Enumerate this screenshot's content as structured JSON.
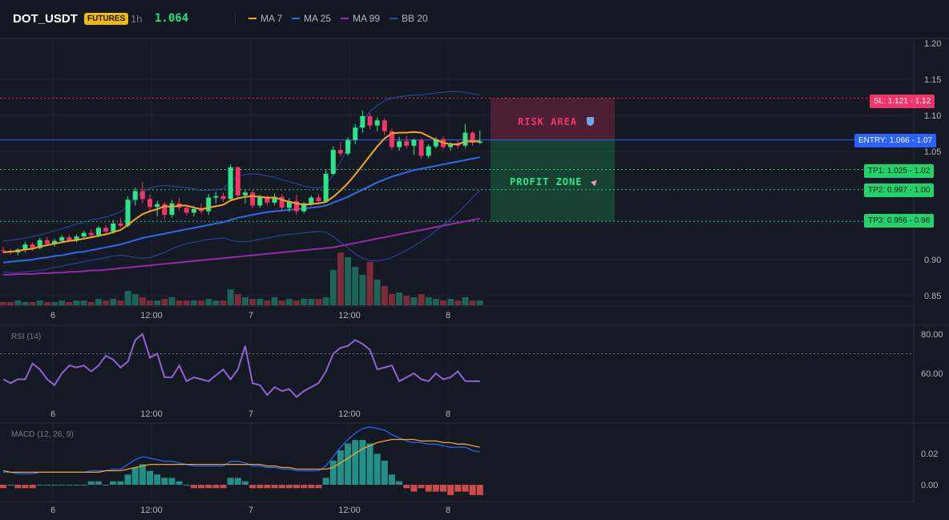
{
  "header": {
    "symbol": "DOT_USDT",
    "badge": "FUTURES",
    "timeframe": "1h",
    "price": "1.064",
    "indicators": [
      {
        "label": "MA 7",
        "color": "#f5a623"
      },
      {
        "label": "MA 25",
        "color": "#2f6be8"
      },
      {
        "label": "MA 99",
        "color": "#9c27b0"
      },
      {
        "label": "BB 20",
        "color": "#2b4aa8"
      }
    ]
  },
  "zones": {
    "risk_label": "RISK AREA",
    "risk_icon": "shield-icon",
    "profit_label": "PROFIT ZONE",
    "profit_icon": "rocket-icon"
  },
  "levels": {
    "sl": {
      "label": "SL: 1.121 - 1.12",
      "value": 1.121,
      "color": "#f23568"
    },
    "entry": {
      "label": "ENTRY: 1.066 - 1.07",
      "value": 1.066,
      "color": "#2962ff"
    },
    "tp1": {
      "label": "TP1: 1.025 - 1.02",
      "value": 1.025,
      "color": "#22d36b"
    },
    "tp2": {
      "label": "TP2: 0.997 - 1.00",
      "value": 0.997,
      "color": "#22d36b"
    },
    "tp3": {
      "label": "TP3: 0.956 - 0.96",
      "value": 0.956,
      "color": "#22d36b"
    }
  },
  "axes": {
    "price_ticks": [
      "1.20",
      "1.15",
      "1.10",
      "1.05",
      "0.90",
      "0.85"
    ],
    "time_ticks": [
      "6",
      "12:00",
      "7",
      "12:00",
      "8"
    ],
    "rsi_label": "RSI (14)",
    "rsi_ticks": [
      "80.00",
      "60.00"
    ],
    "macd_label": "MACD (12, 26, 9)",
    "macd_ticks": [
      "0.02",
      "0.00"
    ]
  },
  "chart_data": {
    "type": "candlestick",
    "x_ticks": [
      "6",
      "12:00",
      "7",
      "12:00",
      "8"
    ],
    "y_range": [
      0.85,
      1.2
    ],
    "candles": [
      [
        0.913,
        0.918,
        0.909,
        0.912
      ],
      [
        0.912,
        0.915,
        0.907,
        0.91
      ],
      [
        0.91,
        0.916,
        0.906,
        0.914
      ],
      [
        0.914,
        0.925,
        0.91,
        0.921
      ],
      [
        0.921,
        0.924,
        0.912,
        0.916
      ],
      [
        0.916,
        0.93,
        0.914,
        0.927
      ],
      [
        0.927,
        0.931,
        0.919,
        0.922
      ],
      [
        0.922,
        0.929,
        0.918,
        0.926
      ],
      [
        0.926,
        0.934,
        0.923,
        0.931
      ],
      [
        0.931,
        0.934,
        0.924,
        0.927
      ],
      [
        0.927,
        0.935,
        0.924,
        0.932
      ],
      [
        0.932,
        0.94,
        0.929,
        0.937
      ],
      [
        0.937,
        0.942,
        0.93,
        0.934
      ],
      [
        0.934,
        0.947,
        0.931,
        0.944
      ],
      [
        0.944,
        0.948,
        0.935,
        0.939
      ],
      [
        0.939,
        0.955,
        0.936,
        0.95
      ],
      [
        0.95,
        0.958,
        0.944,
        0.947
      ],
      [
        0.947,
        0.988,
        0.945,
        0.983
      ],
      [
        0.983,
        1.0,
        0.975,
        0.995
      ],
      [
        0.995,
        1.008,
        0.978,
        0.984
      ],
      [
        0.984,
        0.99,
        0.966,
        0.973
      ],
      [
        0.973,
        0.982,
        0.96,
        0.977
      ],
      [
        0.977,
        0.98,
        0.956,
        0.962
      ],
      [
        0.962,
        0.983,
        0.958,
        0.978
      ],
      [
        0.978,
        0.986,
        0.968,
        0.972
      ],
      [
        0.972,
        0.976,
        0.961,
        0.965
      ],
      [
        0.965,
        0.975,
        0.96,
        0.97
      ],
      [
        0.97,
        0.978,
        0.963,
        0.967
      ],
      [
        0.967,
        0.991,
        0.962,
        0.986
      ],
      [
        0.986,
        0.994,
        0.978,
        0.988
      ],
      [
        0.988,
        0.993,
        0.98,
        0.984
      ],
      [
        0.984,
        1.032,
        0.981,
        1.028
      ],
      [
        1.028,
        1.03,
        0.985,
        0.989
      ],
      [
        0.989,
        0.996,
        0.978,
        0.993
      ],
      [
        0.993,
        0.996,
        0.971,
        0.975
      ],
      [
        0.975,
        0.99,
        0.972,
        0.986
      ],
      [
        0.986,
        0.989,
        0.975,
        0.979
      ],
      [
        0.979,
        0.992,
        0.975,
        0.987
      ],
      [
        0.987,
        0.991,
        0.968,
        0.972
      ],
      [
        0.972,
        0.985,
        0.966,
        0.981
      ],
      [
        0.981,
        0.99,
        0.962,
        0.967
      ],
      [
        0.967,
        0.98,
        0.964,
        0.978
      ],
      [
        0.978,
        0.989,
        0.975,
        0.986
      ],
      [
        0.986,
        0.991,
        0.978,
        0.981
      ],
      [
        0.981,
        1.025,
        0.979,
        1.019
      ],
      [
        1.019,
        1.057,
        1.017,
        1.052
      ],
      [
        1.052,
        1.063,
        1.043,
        1.047
      ],
      [
        1.047,
        1.07,
        1.044,
        1.066
      ],
      [
        1.066,
        1.088,
        1.06,
        1.083
      ],
      [
        1.083,
        1.107,
        1.076,
        1.099
      ],
      [
        1.099,
        1.103,
        1.081,
        1.086
      ],
      [
        1.086,
        1.097,
        1.078,
        1.093
      ],
      [
        1.093,
        1.096,
        1.072,
        1.078
      ],
      [
        1.078,
        1.082,
        1.052,
        1.056
      ],
      [
        1.056,
        1.07,
        1.051,
        1.064
      ],
      [
        1.064,
        1.072,
        1.054,
        1.058
      ],
      [
        1.058,
        1.068,
        1.045,
        1.066
      ],
      [
        1.066,
        1.068,
        1.04,
        1.044
      ],
      [
        1.044,
        1.06,
        1.041,
        1.057
      ],
      [
        1.057,
        1.07,
        1.054,
        1.067
      ],
      [
        1.067,
        1.071,
        1.053,
        1.056
      ],
      [
        1.056,
        1.063,
        1.051,
        1.06
      ],
      [
        1.06,
        1.066,
        1.054,
        1.058
      ],
      [
        1.058,
        1.088,
        1.055,
        1.076
      ],
      [
        1.076,
        1.078,
        1.058,
        1.062
      ],
      [
        1.062,
        1.079,
        1.06,
        1.064
      ]
    ],
    "volume": [
      2,
      2,
      3,
      2,
      2,
      3,
      2,
      2,
      3,
      2,
      3,
      3,
      2,
      4,
      3,
      4,
      3,
      9,
      7,
      5,
      3,
      3,
      4,
      5,
      3,
      3,
      3,
      3,
      4,
      3,
      3,
      10,
      7,
      5,
      4,
      4,
      3,
      5,
      3,
      4,
      3,
      4,
      4,
      4,
      5,
      22,
      33,
      30,
      24,
      19,
      27,
      16,
      12,
      7,
      8,
      6,
      5,
      7,
      5,
      4,
      3,
      4,
      3,
      5,
      3,
      3
    ],
    "ma7": [
      0.91,
      0.911,
      0.912,
      0.914,
      0.915,
      0.918,
      0.92,
      0.922,
      0.924,
      0.926,
      0.927,
      0.929,
      0.931,
      0.933,
      0.935,
      0.938,
      0.941,
      0.948,
      0.956,
      0.963,
      0.967,
      0.97,
      0.974,
      0.973,
      0.975,
      0.975,
      0.972,
      0.97,
      0.972,
      0.974,
      0.976,
      0.982,
      0.985,
      0.987,
      0.988,
      0.987,
      0.986,
      0.986,
      0.983,
      0.98,
      0.978,
      0.976,
      0.977,
      0.978,
      0.98,
      0.987,
      0.996,
      1.006,
      1.018,
      1.031,
      1.044,
      1.057,
      1.068,
      1.075,
      1.076,
      1.076,
      1.077,
      1.076,
      1.071,
      1.066,
      1.062,
      1.06,
      1.06,
      1.064,
      1.064,
      1.064
    ],
    "ma25": [
      0.896,
      0.897,
      0.898,
      0.899,
      0.9,
      0.902,
      0.903,
      0.905,
      0.906,
      0.908,
      0.91,
      0.911,
      0.913,
      0.915,
      0.917,
      0.919,
      0.921,
      0.924,
      0.927,
      0.93,
      0.932,
      0.934,
      0.936,
      0.938,
      0.94,
      0.942,
      0.944,
      0.946,
      0.948,
      0.95,
      0.952,
      0.955,
      0.958,
      0.96,
      0.962,
      0.964,
      0.966,
      0.967,
      0.968,
      0.969,
      0.97,
      0.971,
      0.972,
      0.973,
      0.975,
      0.979,
      0.983,
      0.987,
      0.992,
      0.997,
      1.002,
      1.007,
      1.011,
      1.015,
      1.018,
      1.021,
      1.024,
      1.026,
      1.028,
      1.03,
      1.032,
      1.034,
      1.036,
      1.038,
      1.04,
      1.042
    ],
    "ma99": [
      0.879,
      0.879,
      0.88,
      0.88,
      0.88,
      0.881,
      0.881,
      0.882,
      0.882,
      0.883,
      0.883,
      0.884,
      0.885,
      0.885,
      0.886,
      0.887,
      0.888,
      0.889,
      0.89,
      0.891,
      0.892,
      0.893,
      0.894,
      0.895,
      0.896,
      0.897,
      0.898,
      0.899,
      0.9,
      0.901,
      0.902,
      0.903,
      0.904,
      0.905,
      0.906,
      0.907,
      0.908,
      0.909,
      0.91,
      0.911,
      0.912,
      0.913,
      0.914,
      0.915,
      0.916,
      0.917,
      0.919,
      0.921,
      0.923,
      0.925,
      0.927,
      0.929,
      0.931,
      0.933,
      0.935,
      0.937,
      0.939,
      0.941,
      0.943,
      0.945,
      0.947,
      0.949,
      0.951,
      0.953,
      0.955,
      0.957
    ],
    "bb_upper": [
      0.926,
      0.927,
      0.928,
      0.93,
      0.932,
      0.934,
      0.937,
      0.94,
      0.943,
      0.946,
      0.949,
      0.952,
      0.955,
      0.957,
      0.959,
      0.962,
      0.966,
      0.975,
      0.985,
      0.994,
      0.999,
      1.002,
      1.003,
      1.002,
      1.001,
      1.0,
      0.998,
      0.996,
      0.996,
      0.997,
      0.998,
      1.009,
      1.015,
      1.018,
      1.019,
      1.018,
      1.016,
      1.014,
      1.011,
      1.008,
      1.005,
      1.002,
      1.0,
      0.999,
      1.003,
      1.018,
      1.036,
      1.054,
      1.074,
      1.092,
      1.105,
      1.114,
      1.12,
      1.124,
      1.126,
      1.127,
      1.128,
      1.128,
      1.13,
      1.131,
      1.132,
      1.133,
      1.133,
      1.132,
      1.13,
      1.128
    ],
    "bb_lower": [
      0.883,
      0.882,
      0.882,
      0.883,
      0.884,
      0.885,
      0.887,
      0.889,
      0.891,
      0.893,
      0.895,
      0.897,
      0.899,
      0.901,
      0.903,
      0.905,
      0.906,
      0.905,
      0.903,
      0.902,
      0.903,
      0.906,
      0.91,
      0.915,
      0.919,
      0.922,
      0.924,
      0.926,
      0.928,
      0.929,
      0.93,
      0.927,
      0.925,
      0.925,
      0.926,
      0.928,
      0.93,
      0.932,
      0.934,
      0.935,
      0.936,
      0.937,
      0.938,
      0.939,
      0.938,
      0.932,
      0.924,
      0.916,
      0.908,
      0.902,
      0.898,
      0.898,
      0.9,
      0.903,
      0.908,
      0.913,
      0.919,
      0.925,
      0.932,
      0.94,
      0.948,
      0.956,
      0.965,
      0.975,
      0.986,
      0.996
    ],
    "rsi": [
      57,
      55,
      57,
      57,
      65,
      62,
      57,
      54,
      60,
      64,
      63,
      64,
      61,
      64,
      69,
      67,
      63,
      66,
      77,
      80,
      68,
      70,
      58,
      58,
      64,
      56,
      58,
      57,
      56,
      59,
      62,
      57,
      62,
      74,
      55,
      54,
      49,
      53,
      51,
      52,
      48,
      51,
      53,
      55,
      61,
      70,
      73,
      74,
      77,
      75,
      72,
      62,
      63,
      64,
      56,
      58,
      60,
      57,
      56,
      60,
      57,
      58,
      61,
      56,
      56,
      56
    ],
    "rsi_range": [
      45,
      85
    ],
    "rsi_level": 70,
    "macd": [
      0.008,
      0.008,
      0.007,
      0.007,
      0.007,
      0.008,
      0.008,
      0.008,
      0.008,
      0.008,
      0.008,
      0.008,
      0.009,
      0.009,
      0.009,
      0.01,
      0.01,
      0.013,
      0.016,
      0.018,
      0.017,
      0.016,
      0.015,
      0.015,
      0.014,
      0.013,
      0.012,
      0.012,
      0.012,
      0.012,
      0.012,
      0.015,
      0.015,
      0.014,
      0.012,
      0.012,
      0.011,
      0.011,
      0.01,
      0.01,
      0.009,
      0.009,
      0.009,
      0.009,
      0.012,
      0.018,
      0.024,
      0.029,
      0.033,
      0.036,
      0.037,
      0.036,
      0.035,
      0.032,
      0.03,
      0.028,
      0.027,
      0.027,
      0.026,
      0.026,
      0.025,
      0.024,
      0.024,
      0.024,
      0.022,
      0.021
    ],
    "macd_signal": [
      0.009,
      0.008,
      0.008,
      0.008,
      0.008,
      0.008,
      0.008,
      0.008,
      0.008,
      0.008,
      0.008,
      0.008,
      0.008,
      0.008,
      0.009,
      0.009,
      0.009,
      0.01,
      0.011,
      0.012,
      0.013,
      0.013,
      0.013,
      0.013,
      0.013,
      0.013,
      0.013,
      0.013,
      0.013,
      0.013,
      0.013,
      0.013,
      0.013,
      0.013,
      0.013,
      0.013,
      0.012,
      0.012,
      0.011,
      0.011,
      0.01,
      0.01,
      0.01,
      0.01,
      0.01,
      0.011,
      0.014,
      0.017,
      0.02,
      0.023,
      0.025,
      0.027,
      0.028,
      0.029,
      0.029,
      0.029,
      0.029,
      0.028,
      0.028,
      0.028,
      0.027,
      0.027,
      0.026,
      0.026,
      0.025,
      0.024
    ],
    "macd_range": [
      -0.005,
      0.04
    ]
  }
}
